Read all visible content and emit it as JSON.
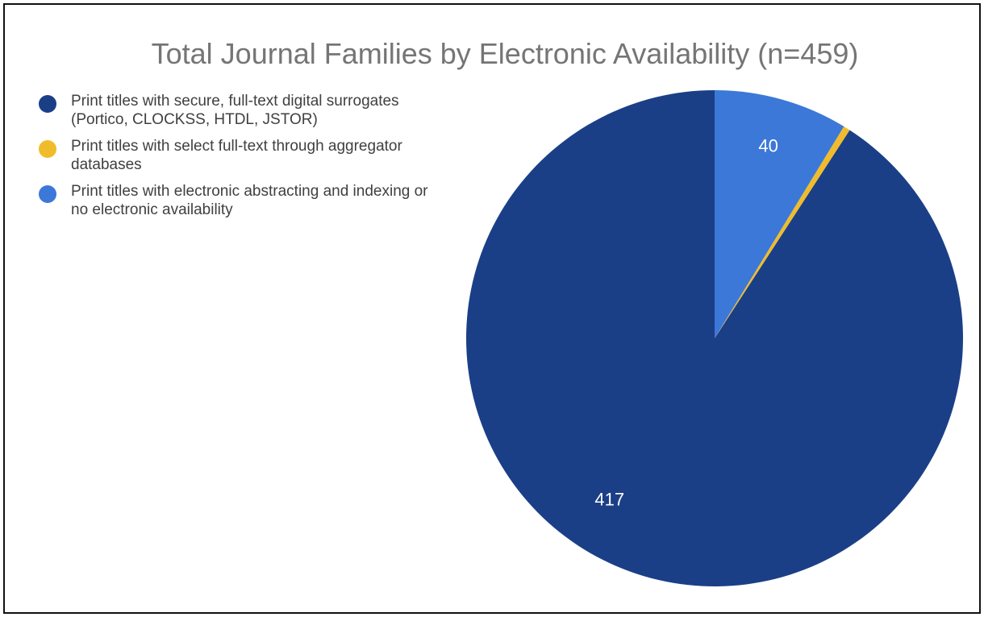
{
  "chart_data": {
    "type": "pie",
    "title": "Total Journal Families by Electronic Availability (n=459)",
    "legend_position": "left",
    "slices": [
      {
        "label": "Print titles with secure, full-text digital surrogates (Portico, CLOCKSS, HTDL, JSTOR)",
        "value": 417,
        "color": "#1b3f87",
        "data_label": "417"
      },
      {
        "label": "Print titles with select full-text through aggregator databases",
        "value": 2,
        "color": "#f0bc2b",
        "data_label": ""
      },
      {
        "label": "Print titles with electronic abstracting and indexing or no electronic availability",
        "value": 40,
        "color": "#3c78d8",
        "data_label": "40"
      }
    ]
  }
}
